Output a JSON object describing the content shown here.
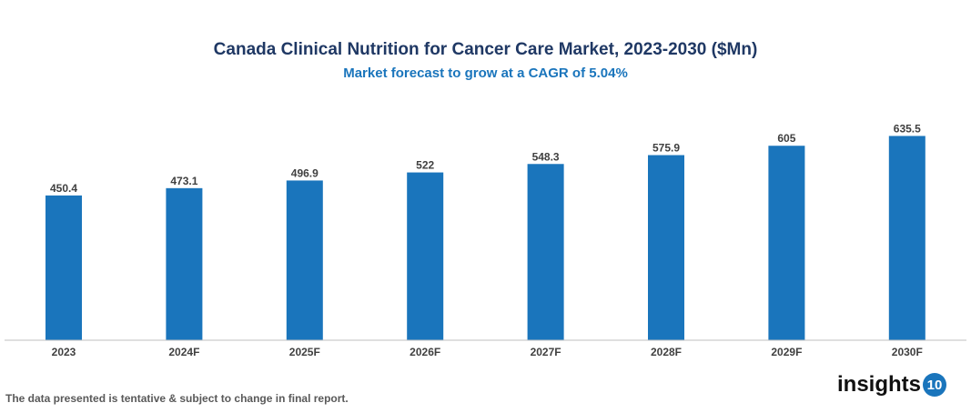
{
  "chart_data": {
    "type": "bar",
    "title": "Canada Clinical Nutrition for Cancer Care Market, 2023-2030 ($Mn)",
    "subtitle": "Market forecast to grow at a CAGR of 5.04%",
    "categories": [
      "2023",
      "2024F",
      "2025F",
      "2026F",
      "2027F",
      "2028F",
      "2029F",
      "2030F"
    ],
    "values": [
      450.4,
      473.1,
      496.9,
      522,
      548.3,
      575.9,
      605,
      635.5
    ],
    "value_labels": [
      "450.4",
      "473.1",
      "496.9",
      "522",
      "548.3",
      "575.9",
      "605",
      "635.5"
    ],
    "xlabel": "",
    "ylabel": "",
    "ylim": [
      0,
      750
    ],
    "grid": false,
    "bar_color": "#1a75bc"
  },
  "footnote": "The data presented is tentative & subject to change in final report.",
  "logo": {
    "text": "insights",
    "badge": "10"
  }
}
